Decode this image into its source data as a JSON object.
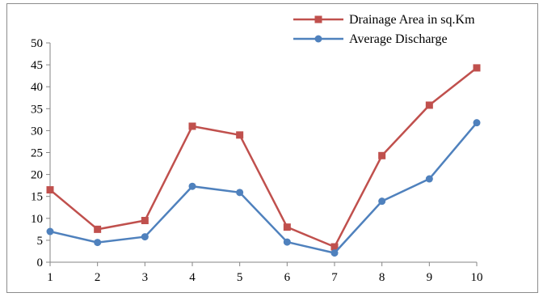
{
  "chart_data": {
    "type": "line",
    "title": "",
    "xlabel": "",
    "ylabel": "",
    "x": [
      1,
      2,
      3,
      4,
      5,
      6,
      7,
      8,
      9,
      10
    ],
    "xlim": [
      1,
      10
    ],
    "ylim": [
      0,
      50
    ],
    "y_ticks": [
      0,
      5,
      10,
      15,
      20,
      25,
      30,
      35,
      40,
      45,
      50
    ],
    "grid": false,
    "legend_position": "top-right",
    "series": [
      {
        "name": "Drainage Area in sq.Km",
        "color": "#c0504d",
        "marker": "square",
        "values": [
          16.5,
          7.5,
          9.5,
          31,
          29,
          8,
          3.5,
          24.3,
          35.8,
          44.3
        ]
      },
      {
        "name": "Average Discharge",
        "color": "#4f81bd",
        "marker": "circle",
        "values": [
          7,
          4.5,
          5.8,
          17.3,
          15.9,
          4.6,
          2.1,
          13.9,
          19,
          31.8
        ]
      }
    ]
  }
}
